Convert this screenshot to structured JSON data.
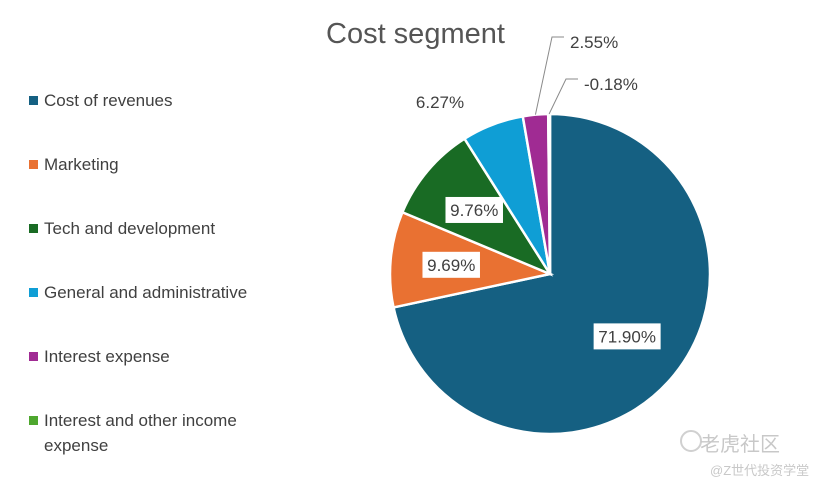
{
  "chart_data": {
    "type": "pie",
    "title": "Cost segment",
    "categories": [
      "Cost of revenues",
      "Marketing",
      "Tech and development",
      "General and administrative",
      "Interest expense",
      "Interest and other income expense"
    ],
    "values": [
      71.9,
      9.69,
      9.76,
      6.27,
      2.55,
      -0.18
    ],
    "data_labels": [
      "71.90%",
      "9.69%",
      "9.76%",
      "6.27%",
      "2.55%",
      "-0.18%"
    ],
    "colors": [
      "#156082",
      "#E97132",
      "#196B24",
      "#0F9ED5",
      "#A02B93",
      "#4EA72E"
    ],
    "legend_position": "left",
    "start_angle_deg": 0,
    "direction": "clockwise"
  },
  "watermark": {
    "main": "老虎社区",
    "sub": "@Z世代投资学堂"
  }
}
